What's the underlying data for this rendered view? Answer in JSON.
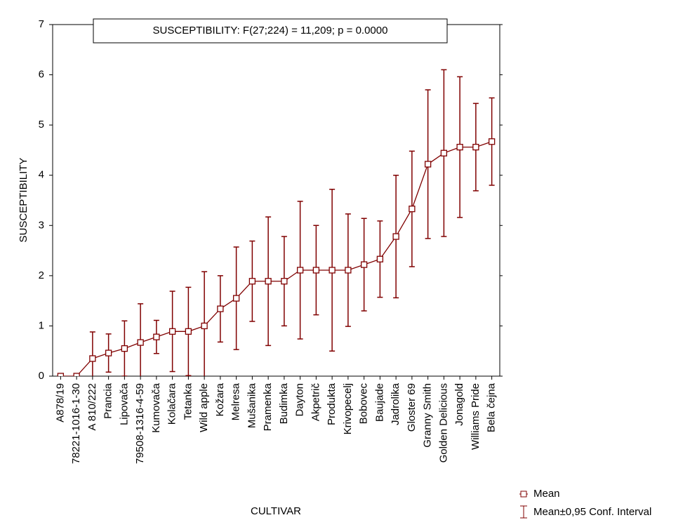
{
  "chart_data": {
    "type": "line",
    "title": "SUSCEPTIBILITY:   F(27;224) = 11,209; p = 0.0000",
    "x_label": "CULTIVAR",
    "y_label": "SUSCEPTIBILITY",
    "categories": [
      "A878/19",
      "78221-1016-1-30",
      "A 810/222",
      "Prancia",
      "Lipovača",
      "79508-1316-4-59",
      "Kumovača",
      "Kolačara",
      "Tetanka",
      "Wild apple",
      "Kožara",
      "Melresa",
      "Mušanika",
      "Pramenka",
      "Budimka",
      "Dayton",
      "Akpetrič",
      "Produkta",
      "Krivopecelj",
      "Bobovec",
      "Baujade",
      "Jadrolika",
      "Gloster 69",
      "Granny Smith",
      "Golden Delicious",
      "Jonagold",
      "Williams Pride",
      "Bela čejna"
    ],
    "values": [
      0,
      0,
      0.35,
      0.46,
      0.55,
      0.67,
      0.78,
      0.89,
      0.89,
      1.0,
      1.34,
      1.55,
      1.89,
      1.89,
      1.89,
      2.11,
      2.11,
      2.11,
      2.11,
      2.22,
      2.33,
      2.78,
      3.33,
      4.22,
      4.44,
      4.56,
      4.56,
      4.67
    ],
    "errors": [
      0,
      0,
      0.53,
      0.38,
      0.55,
      0.77,
      0.33,
      0.8,
      0.88,
      1.08,
      0.66,
      1.02,
      0.8,
      1.28,
      0.89,
      1.37,
      0.89,
      1.61,
      1.12,
      0.92,
      0.76,
      1.22,
      1.15,
      1.48,
      1.66,
      1.4,
      0.87,
      0.87
    ],
    "color": "#800000",
    "legend": [
      "Mean",
      "Mean±0,95 Conf. Interval"
    ],
    "ylim": [
      0,
      7
    ],
    "yticks": [
      0,
      1,
      2,
      3,
      4,
      5,
      6,
      7
    ]
  }
}
